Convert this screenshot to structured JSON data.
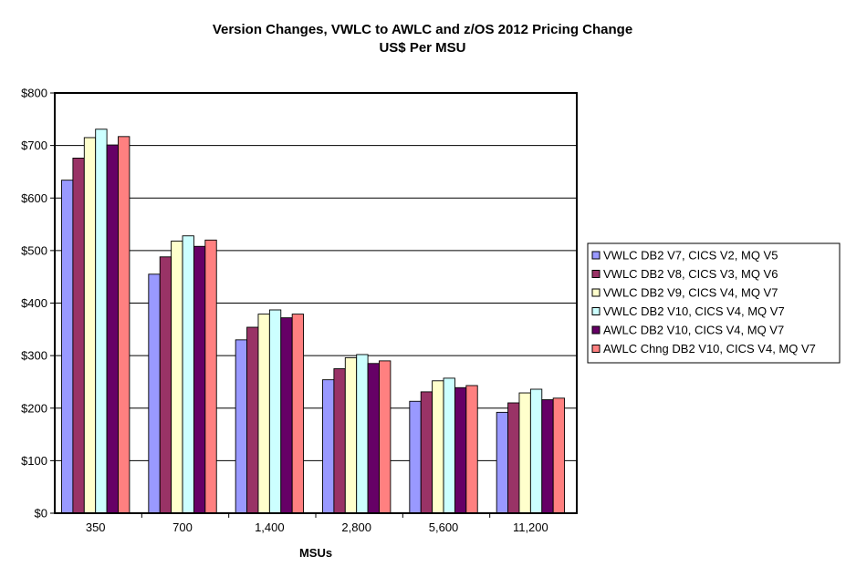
{
  "chart_data": {
    "type": "bar",
    "title": "Version Changes, VWLC to AWLC and z/OS 2012 Pricing Change",
    "subtitle": "US$ Per MSU",
    "xlabel": "MSUs",
    "ylabel": "",
    "categories": [
      "350",
      "700",
      "1,400",
      "2,800",
      "5,600",
      "11,200"
    ],
    "ylim": [
      0,
      800
    ],
    "yticks": [
      "$0",
      "$100",
      "$200",
      "$300",
      "$400",
      "$500",
      "$600",
      "$700",
      "$800"
    ],
    "grid": true,
    "legend_position": "right",
    "series": [
      {
        "name": "VWLC DB2 V7, CICS V2, MQ V5",
        "color": "#9999ff",
        "values": [
          634,
          455,
          330,
          254,
          213,
          192
        ]
      },
      {
        "name": "VWLC DB2 V8, CICS V3, MQ V6",
        "color": "#993366",
        "values": [
          676,
          488,
          354,
          275,
          231,
          210
        ]
      },
      {
        "name": "VWLC DB2 V9, CICS V4, MQ V7",
        "color": "#ffffcc",
        "values": [
          715,
          518,
          379,
          296,
          252,
          229
        ]
      },
      {
        "name": "VWLC DB2 V10, CICS V4, MQ V7",
        "color": "#ccffff",
        "values": [
          731,
          528,
          387,
          302,
          257,
          236
        ]
      },
      {
        "name": "AWLC DB2 V10, CICS V4, MQ V7",
        "color": "#660066",
        "values": [
          701,
          508,
          372,
          285,
          239,
          216
        ]
      },
      {
        "name": "AWLC Chng DB2 V10, CICS V4, MQ V7",
        "color": "#ff8080",
        "values": [
          717,
          520,
          379,
          290,
          243,
          219
        ]
      }
    ]
  }
}
